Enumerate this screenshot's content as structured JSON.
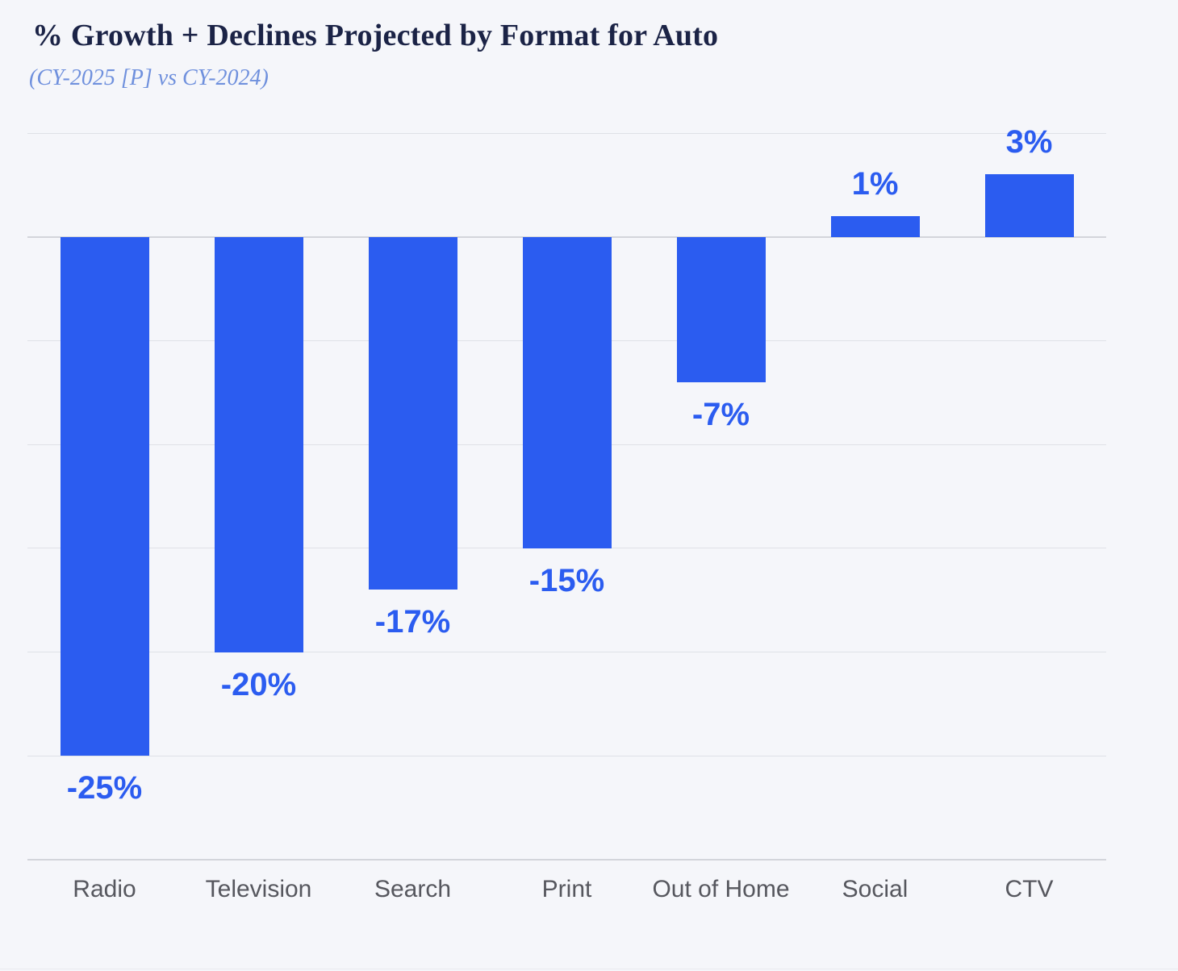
{
  "header": {
    "title": "% Growth + Declines Projected by Format for Auto",
    "subtitle": "(CY-2025 [P] vs CY-2024)"
  },
  "chart_data": {
    "type": "bar",
    "title": "% Growth + Declines Projected by Format for Auto",
    "subtitle": "(CY-2025 [P] vs CY-2024)",
    "categories": [
      "Radio",
      "Television",
      "Search",
      "Print",
      "Out of Home",
      "Social",
      "CTV"
    ],
    "values": [
      -25,
      -20,
      -17,
      -15,
      -7,
      1,
      3
    ],
    "labels": [
      "-25%",
      "-20%",
      "-17%",
      "-15%",
      "-7%",
      "1%",
      "3%"
    ],
    "xlabel": "",
    "ylabel": "",
    "ylim": [
      -30,
      5
    ],
    "grid_step": 5,
    "grid": true,
    "legend": false,
    "y_tick_labels_shown": false,
    "value_label_position": "outside-end"
  },
  "colors": {
    "background": "#f5f6fa",
    "bar_blue": "#2b5cf0",
    "value_label_blue": "#2b5cf0",
    "title_navy": "#1b2346",
    "subtitle_periwinkle": "#6f90dd",
    "gridline_gray": "#dfe1e7",
    "zero_line_gray": "#d3d5db",
    "category_gray": "#56575e"
  }
}
